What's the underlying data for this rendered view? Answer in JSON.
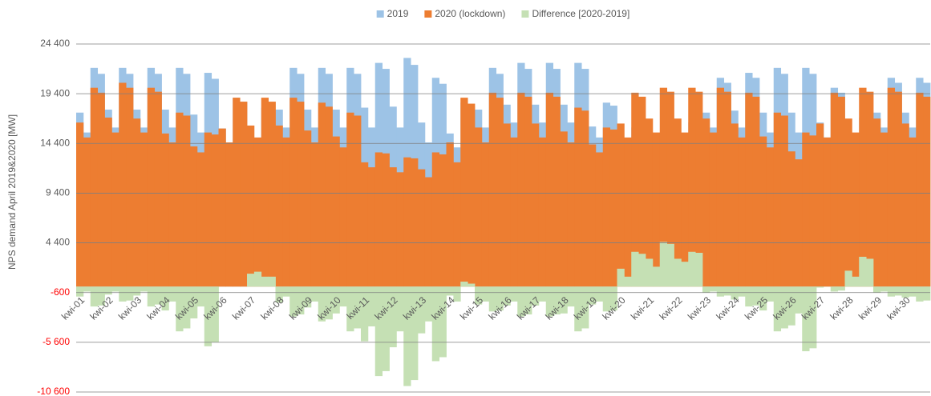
{
  "chart_data": {
    "type": "bar",
    "y_axis_label": "NPS demand April 2019&2020 [MW]",
    "categories": [
      "kwi-01",
      null,
      null,
      null,
      "kwi-02",
      null,
      null,
      null,
      "kwi-03",
      null,
      null,
      null,
      "kwi-04",
      null,
      null,
      null,
      "kwi-05",
      null,
      null,
      null,
      "kwi-06",
      null,
      null,
      null,
      "kwi-07",
      null,
      null,
      null,
      "kwi-08",
      null,
      null,
      null,
      "kwi-09",
      null,
      null,
      null,
      "kwi-10",
      null,
      null,
      null,
      "kwi-11",
      null,
      null,
      null,
      "kwi-12",
      null,
      null,
      null,
      "kwi-13",
      null,
      null,
      null,
      "kwi-14",
      null,
      null,
      null,
      "kwi-15",
      null,
      null,
      null,
      "kwi-16",
      null,
      null,
      null,
      "kwi-17",
      null,
      null,
      null,
      "kwi-18",
      null,
      null,
      null,
      "kwi-19",
      null,
      null,
      null,
      "kwi-20",
      null,
      null,
      null,
      "kwi-21",
      null,
      null,
      null,
      "kwi-22",
      null,
      null,
      null,
      "kwi-23",
      null,
      null,
      null,
      "kwi-24",
      null,
      null,
      null,
      "kwi-25",
      null,
      null,
      null,
      "kwi-26",
      null,
      null,
      null,
      "kwi-27",
      null,
      null,
      null,
      "kwi-28",
      null,
      null,
      null,
      "kwi-29",
      null,
      null,
      null,
      "kwi-30",
      null,
      null,
      null
    ],
    "series": [
      {
        "name": "2019",
        "color": "#9dc3e6",
        "values": [
          17500,
          15500,
          22000,
          21400,
          17800,
          16000,
          22000,
          21400,
          17800,
          16000,
          22000,
          21400,
          17800,
          16000,
          22000,
          21400,
          17300,
          15500,
          21500,
          20900,
          15900,
          14500,
          19000,
          18600,
          14900,
          13500,
          18000,
          17600,
          17800,
          16000,
          22000,
          21400,
          17800,
          16000,
          22000,
          21400,
          17800,
          16000,
          22000,
          21400,
          18000,
          16000,
          22500,
          21900,
          18100,
          16000,
          23000,
          22300,
          16500,
          14500,
          21000,
          20400,
          15400,
          14000,
          18500,
          18100,
          17800,
          16000,
          22000,
          21400,
          18300,
          16500,
          22500,
          21900,
          18300,
          16500,
          22500,
          21900,
          18300,
          16500,
          22500,
          21900,
          16100,
          15000,
          18500,
          18200,
          14600,
          14000,
          16000,
          15800,
          14100,
          13500,
          15500,
          15300,
          14100,
          13000,
          16500,
          16200,
          17500,
          16000,
          21000,
          20500,
          17700,
          16000,
          21500,
          21000,
          17500,
          15500,
          22000,
          21400,
          17500,
          15500,
          22000,
          21400,
          16500,
          15000,
          20000,
          19500,
          15300,
          14500,
          17000,
          16800,
          17500,
          16000,
          21000,
          20500,
          17500,
          16000,
          21000,
          20500
        ]
      },
      {
        "name": "2020 (lockdown)",
        "color": "#ed7d31",
        "values": [
          16500,
          15000,
          20000,
          19500,
          17000,
          15500,
          20500,
          20000,
          16900,
          15500,
          20000,
          19600,
          15400,
          14500,
          17500,
          17200,
          14100,
          13500,
          15500,
          15300,
          15900,
          14500,
          19000,
          18600,
          16200,
          15000,
          19000,
          18600,
          16200,
          15000,
          19000,
          18600,
          15700,
          14500,
          18500,
          18100,
          15100,
          14000,
          17500,
          17200,
          12500,
          12000,
          13500,
          13400,
          12000,
          11500,
          13000,
          12900,
          11800,
          11000,
          13500,
          13300,
          14500,
          12500,
          19000,
          18400,
          16000,
          14500,
          19500,
          19000,
          16400,
          15000,
          19500,
          19100,
          16400,
          15000,
          19500,
          19100,
          15600,
          14500,
          18000,
          17700,
          14300,
          13500,
          16000,
          15800,
          16400,
          15000,
          19500,
          19100,
          16900,
          15500,
          20000,
          19600,
          16900,
          15500,
          20000,
          19600,
          16900,
          15500,
          20000,
          19600,
          16400,
          15000,
          19500,
          19100,
          15100,
          14000,
          17500,
          17200,
          13600,
          12800,
          15500,
          15200,
          16400,
          15000,
          19500,
          19100,
          16900,
          15500,
          20000,
          19600,
          16900,
          15500,
          20000,
          19600,
          16400,
          15000,
          19500,
          19100
        ]
      },
      {
        "name": "Difference [2020-2019]",
        "color": "#c5e0b4",
        "values": [
          -1000,
          -500,
          -2000,
          -1900,
          -800,
          -500,
          -1500,
          -1400,
          -900,
          -500,
          -2000,
          -1800,
          -2400,
          -1500,
          -4500,
          -4200,
          -3200,
          -2000,
          -6000,
          -5600,
          0,
          0,
          0,
          0,
          1300,
          1500,
          1000,
          1000,
          -1600,
          -1000,
          -3000,
          -2800,
          -2100,
          -1500,
          -3500,
          -3300,
          -2700,
          -2000,
          -4500,
          -4200,
          -5500,
          -4000,
          -9000,
          -8500,
          -6100,
          -4500,
          -10000,
          -9400,
          -4700,
          -3500,
          -7500,
          -7100,
          -900,
          -1500,
          500,
          300,
          -1800,
          -1500,
          -2500,
          -2400,
          -1900,
          -1500,
          -3000,
          -2800,
          -1900,
          -1500,
          -3000,
          -2800,
          -2700,
          -2000,
          -4500,
          -4200,
          -1800,
          -1500,
          -2500,
          -2400,
          1800,
          1000,
          3500,
          3300,
          2800,
          2000,
          4500,
          4300,
          2800,
          2500,
          3500,
          3400,
          -600,
          -500,
          -1000,
          -900,
          -1300,
          -1000,
          -2000,
          -1900,
          -2400,
          -1500,
          -4500,
          -4200,
          -3900,
          -2700,
          -6500,
          -6200,
          -100,
          0,
          -500,
          -400,
          1600,
          1000,
          3000,
          2800,
          -600,
          -500,
          -1000,
          -900,
          -1100,
          -1000,
          -1500,
          -1400
        ]
      }
    ],
    "ylim": [
      -10600,
      24400
    ],
    "yticks": [
      {
        "value": -10600,
        "label": "-10 600"
      },
      {
        "value": -5600,
        "label": "-5 600"
      },
      -600,
      {
        "value": 4400,
        "label": "4 400"
      },
      {
        "value": 9400,
        "label": "9 400"
      },
      {
        "value": 14400,
        "label": "14 400"
      },
      {
        "value": 19400,
        "label": "19 400"
      },
      {
        "value": 24400,
        "label": "24 400"
      }
    ],
    "grid": true,
    "negative_tick_color": "#ff0000",
    "legend": "top"
  }
}
